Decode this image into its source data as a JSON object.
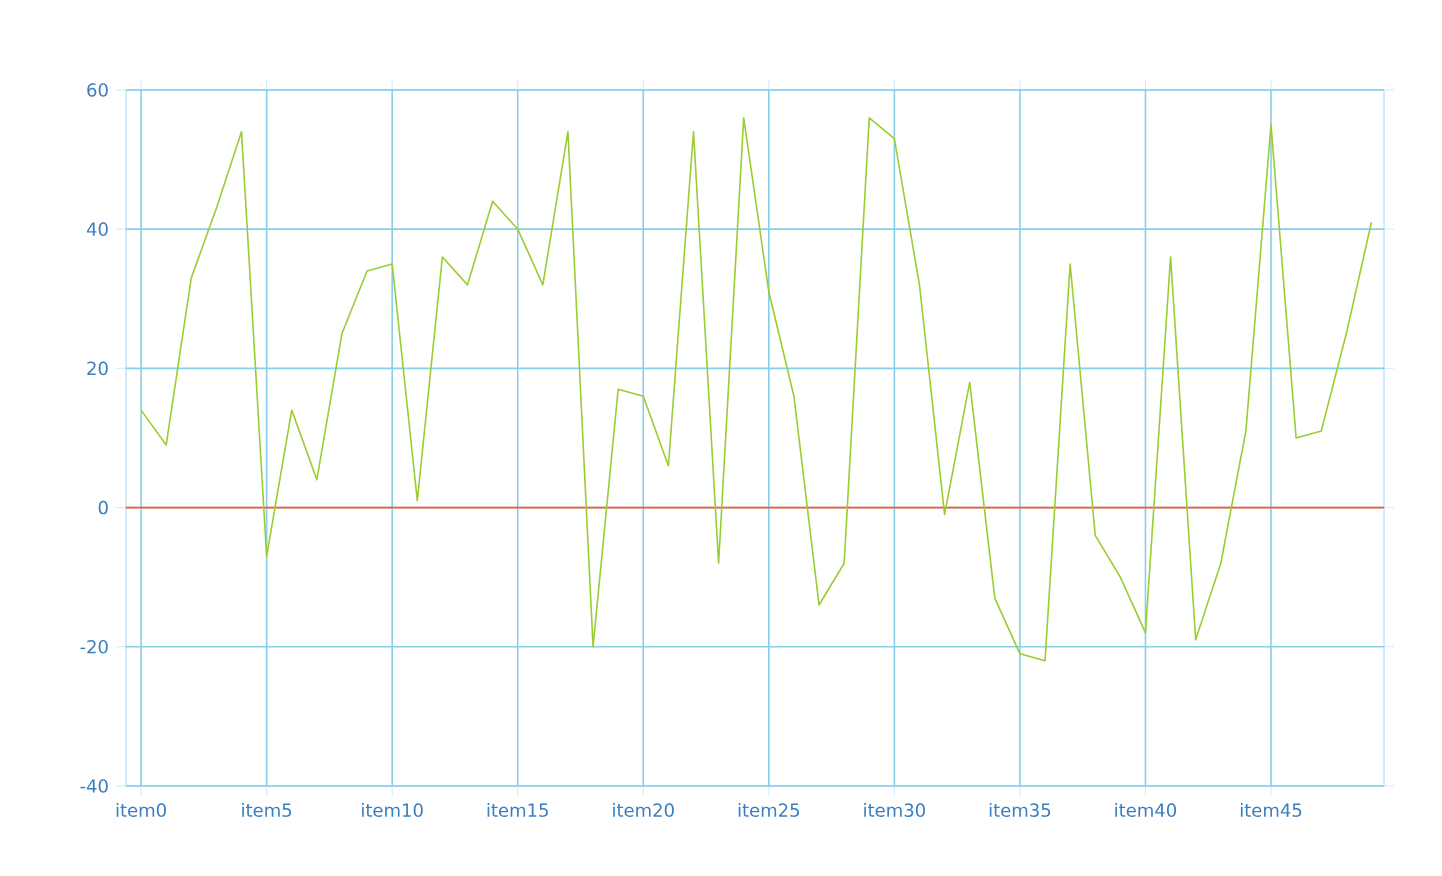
{
  "chart_data": {
    "type": "line",
    "categories": [
      "item0",
      null,
      null,
      null,
      null,
      "item5",
      null,
      null,
      null,
      null,
      "item10",
      null,
      null,
      null,
      null,
      "item15",
      null,
      null,
      null,
      null,
      "item20",
      null,
      null,
      null,
      null,
      "item25",
      null,
      null,
      null,
      null,
      "item30",
      null,
      null,
      null,
      null,
      "item35",
      null,
      null,
      null,
      null,
      "item40",
      null,
      null,
      null,
      null,
      "item45",
      null,
      null,
      null,
      null
    ],
    "series": [
      {
        "color": "#9acd32",
        "values": [
          14,
          9,
          33,
          43,
          54,
          -7,
          14,
          4,
          25,
          34,
          35,
          1,
          36,
          32,
          44,
          40,
          32,
          54,
          -20,
          17,
          16,
          6,
          54,
          -8,
          56,
          31,
          16,
          -14,
          -8,
          56,
          53,
          32,
          -1,
          18,
          -13,
          -21,
          -22,
          35,
          -4,
          -10,
          -18,
          36,
          -19,
          -8,
          11,
          55,
          10,
          11,
          25,
          41
        ]
      }
    ],
    "ylim": [
      -40,
      60
    ],
    "yticks": [
      -40,
      -20,
      0,
      20,
      40,
      60
    ],
    "grid": true,
    "marker": "none",
    "line_style": "solid",
    "ref_lines": [
      {
        "axis": "y",
        "value": 0,
        "color": "#ff5722"
      }
    ]
  }
}
